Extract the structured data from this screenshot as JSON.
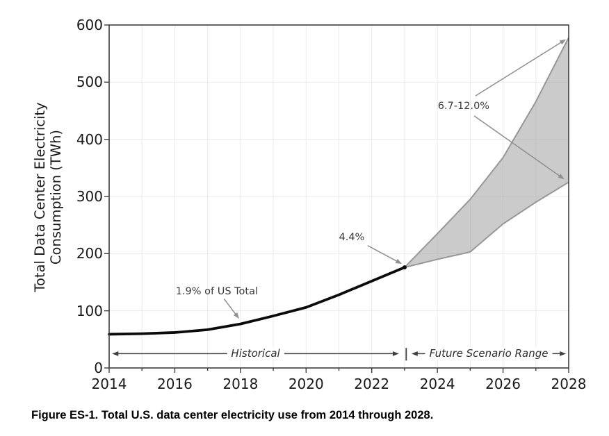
{
  "caption": "Figure ES-1. Total U.S. data center electricity use from 2014 through 2028.",
  "colors": {
    "historical_line": "#0b0b0b",
    "band_fill": "#a0a0a0",
    "band_edge": "#979797",
    "grid": "#e9e9e9",
    "spine": "#3d3d3d",
    "annotation_arrow": "#8f8f8f",
    "span_arrow": "#3f3f3f"
  },
  "chart_data": {
    "type": "line",
    "title": "",
    "xlabel": "",
    "ylabel_lines": [
      "Total Data Center Electricity",
      "Consumption (TWh)"
    ],
    "xlim": [
      2014,
      2028
    ],
    "ylim": [
      0,
      600
    ],
    "x_major_ticks": [
      2014,
      2016,
      2018,
      2020,
      2022,
      2024,
      2026,
      2028
    ],
    "x_minor_ticks": [
      2015,
      2017,
      2019,
      2021,
      2023,
      2025,
      2027
    ],
    "y_ticks": [
      0,
      100,
      200,
      300,
      400,
      500,
      600
    ],
    "grid": true,
    "legend": "none",
    "series": [
      {
        "name": "Historical",
        "kind": "line",
        "x": [
          2014,
          2015,
          2016,
          2017,
          2018,
          2019,
          2020,
          2021,
          2022,
          2023
        ],
        "values": [
          59,
          60,
          62,
          67,
          77,
          91,
          106,
          128,
          152,
          176
        ]
      },
      {
        "name": "Future Scenario Range",
        "kind": "band",
        "x": [
          2023,
          2024,
          2025,
          2026,
          2027,
          2028
        ],
        "upper": [
          176,
          235,
          295,
          368,
          466,
          578
        ],
        "lower": [
          176,
          190,
          203,
          252,
          290,
          325
        ]
      }
    ],
    "annotations": [
      {
        "id": "share-2018",
        "text": "1.9% of US Total",
        "x": 2017.28,
        "y": 134,
        "arrows": [
          {
            "x1": 2017.5,
            "y1": 121,
            "x2": 2017.96,
            "y2": 86
          }
        ]
      },
      {
        "id": "share-2023",
        "text": "4.4%",
        "x": 2021.39,
        "y": 228,
        "arrows": [
          {
            "x1": 2021.88,
            "y1": 214,
            "x2": 2022.92,
            "y2": 182
          }
        ]
      },
      {
        "id": "share-2028",
        "text": "6.7-12.0%",
        "x": 2024.8,
        "y": 458,
        "arrows": [
          {
            "x1": 2025.16,
            "y1": 476,
            "x2": 2027.92,
            "y2": 575
          },
          {
            "x1": 2025.12,
            "y1": 441,
            "x2": 2027.87,
            "y2": 330
          }
        ]
      }
    ],
    "spans": [
      {
        "id": "historical",
        "text": "Historical",
        "x_from": 2014.09,
        "x_to": 2022.83,
        "y": 25
      },
      {
        "id": "future",
        "text": "Future Scenario Range",
        "x_from": 2023.21,
        "x_to": 2027.92,
        "y": 25
      }
    ],
    "divider": {
      "x": 2023.05,
      "y_from": 13,
      "y_to": 35
    }
  }
}
